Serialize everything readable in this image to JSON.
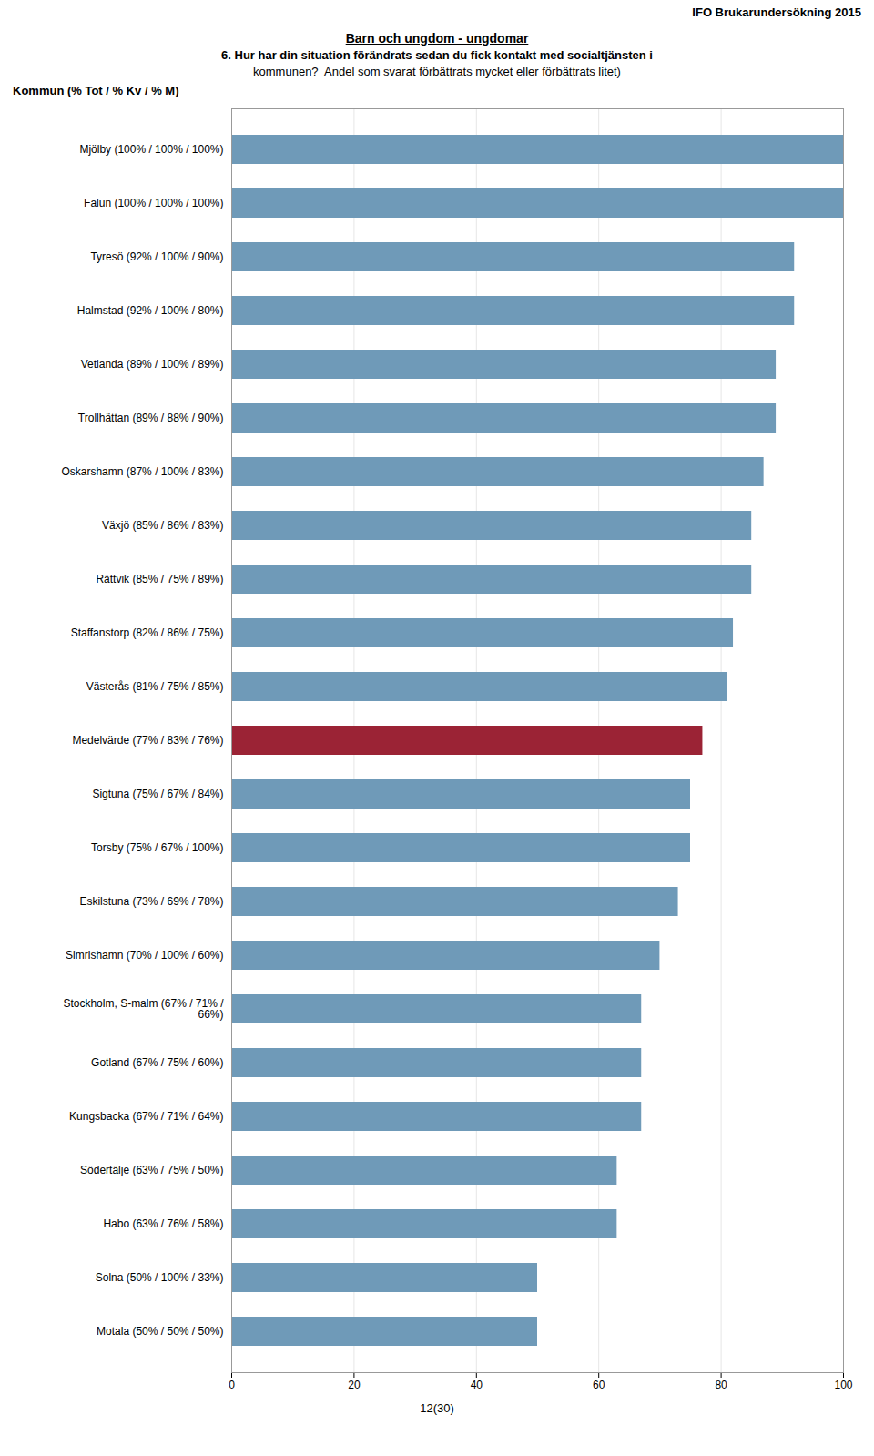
{
  "chart_data": {
    "type": "bar",
    "orientation": "horizontal",
    "title": "Barn och ungdom - ungdomar",
    "subtitle": [
      "6. Hur har din situation förändrats sedan du fick kontakt med socialtjänsten i",
      "kommunen?  Andel som svarat förbättrats mycket eller förbättrats litet)"
    ],
    "annotations": [
      "IFO Brukarundersökning 2015",
      "Kommun (% Tot / % Kv / % M)",
      "12(30)"
    ],
    "categories": [
      "Mjölby (100% / 100% / 100%)",
      "Falun (100% / 100% / 100%)",
      "Tyresö (92% / 100% / 90%)",
      "Halmstad (92% / 100% / 80%)",
      "Vetlanda (89% / 100% / 89%)",
      "Trollhättan (89% / 88% / 90%)",
      "Oskarshamn (87% / 100% / 83%)",
      "Växjö (85% / 86% / 83%)",
      "Rättvik (85% / 75% / 89%)",
      "Staffanstorp (82% / 86% / 75%)",
      "Västerås (81% / 75% / 85%)",
      "Medelvärde (77% / 83% / 76%)",
      "Sigtuna (75% / 67% / 84%)",
      "Torsby (75% / 67% / 100%)",
      "Eskilstuna (73% / 69% / 78%)",
      "Simrishamn (70% / 100% / 60%)",
      "Stockholm, S-malm (67% / 71% /\n66%)",
      "Gotland (67% / 75% / 60%)",
      "Kungsbacka (67% / 71% / 64%)",
      "Södertälje (63% / 75% / 50%)",
      "Habo (63% / 76% / 58%)",
      "Solna (50% / 100% / 33%)",
      "Motala (50% / 50% / 50%)"
    ],
    "values": [
      100,
      100,
      92,
      92,
      89,
      89,
      87,
      85,
      85,
      82,
      81,
      77,
      75,
      75,
      73,
      70,
      67,
      67,
      67,
      63,
      63,
      50,
      50
    ],
    "colors": [
      "#6F9AB8",
      "#6F9AB8",
      "#6F9AB8",
      "#6F9AB8",
      "#6F9AB8",
      "#6F9AB8",
      "#6F9AB8",
      "#6F9AB8",
      "#6F9AB8",
      "#6F9AB8",
      "#6F9AB8",
      "#9B2335",
      "#6F9AB8",
      "#6F9AB8",
      "#6F9AB8",
      "#6F9AB8",
      "#6F9AB8",
      "#6F9AB8",
      "#6F9AB8",
      "#6F9AB8",
      "#6F9AB8",
      "#6F9AB8",
      "#6F9AB8"
    ],
    "xlim": [
      0,
      100
    ],
    "xticks": [
      0,
      20,
      40,
      60,
      80,
      100
    ],
    "grid": true
  }
}
